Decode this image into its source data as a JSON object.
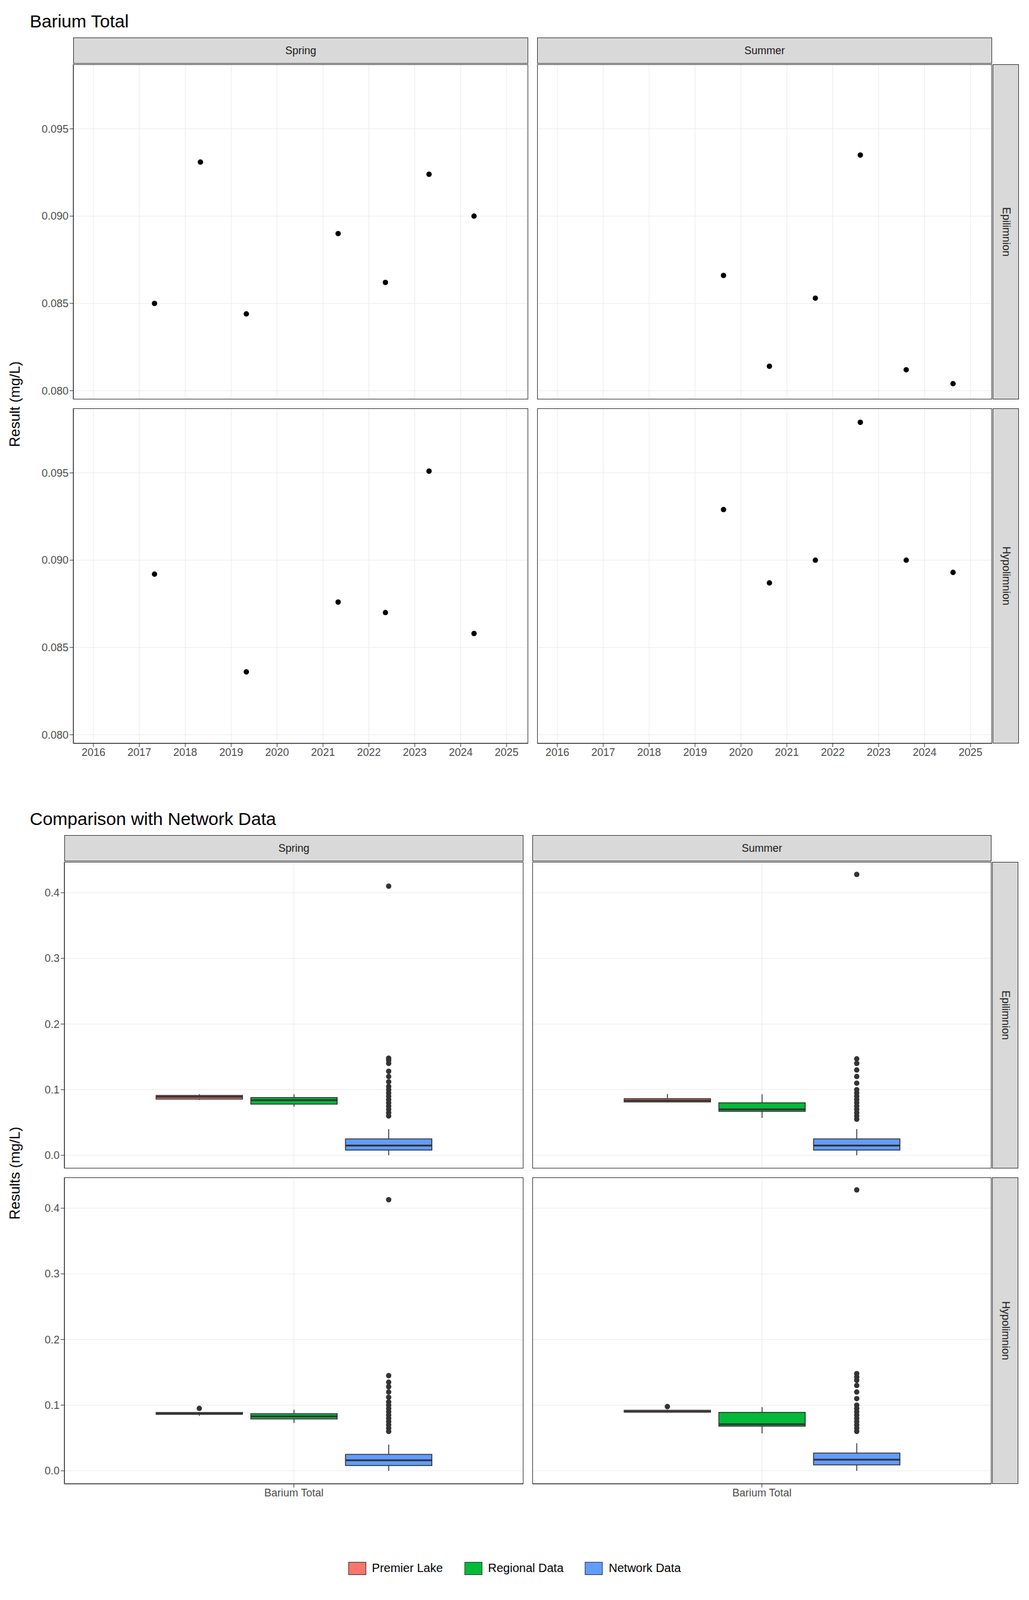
{
  "chart_data": [
    {
      "type": "scatter",
      "title": "Barium Total",
      "y_label": "Result (mg/L)",
      "color": "#000000",
      "grid": true,
      "columns": [
        "Spring",
        "Summer"
      ],
      "rows": [
        "Epilimnion",
        "Hypolimnion"
      ],
      "xlim": [
        2015.56,
        2025.47
      ],
      "xticks": [
        2016,
        2017,
        2018,
        2019,
        2020,
        2021,
        2022,
        2023,
        2024,
        2025
      ],
      "ylim": [
        0.0795,
        0.0987
      ],
      "yticks": [
        {
          "value": 0.08,
          "label": "0.080"
        },
        0.085,
        {
          "value": 0.09,
          "label": "0.090"
        },
        0.095
      ],
      "panels": [
        {
          "column": "Spring",
          "row": "Epilimnion",
          "x": [
            2017.33,
            2018.33,
            2019.33,
            2021.33,
            2022.36,
            2023.31,
            2024.29
          ],
          "values": [
            0.085,
            0.0931,
            0.0844,
            0.089,
            0.0862,
            0.0924,
            0.09
          ]
        },
        {
          "column": "Summer",
          "row": "Epilimnion",
          "x": [
            2019.62,
            2020.62,
            2021.62,
            2022.6,
            2023.6,
            2024.62
          ],
          "values": [
            0.0866,
            0.0814,
            0.0853,
            0.0935,
            0.0812,
            0.0804
          ]
        },
        {
          "column": "Spring",
          "row": "Hypolimnion",
          "x": [
            2017.33,
            2019.33,
            2021.33,
            2022.36,
            2023.31,
            2024.29
          ],
          "values": [
            0.0892,
            0.0836,
            0.0876,
            0.087,
            0.0951,
            0.0858
          ]
        },
        {
          "column": "Summer",
          "row": "Hypolimnion",
          "x": [
            2019.62,
            2020.62,
            2021.62,
            2022.6,
            2023.6,
            2024.62
          ],
          "values": [
            0.0929,
            0.0887,
            0.09,
            0.0979,
            0.09,
            0.0893
          ]
        }
      ]
    },
    {
      "type": "box",
      "title": "Comparison with Network Data",
      "y_label": "Results (mg/L)",
      "grid": true,
      "legend": "bottom",
      "columns": [
        "Spring",
        "Summer"
      ],
      "rows": [
        "Epilimnion",
        "Hypolimnion"
      ],
      "categories": [
        "Barium Total"
      ],
      "ylim": [
        -0.02,
        0.447
      ],
      "yticks": [
        {
          "value": 0,
          "label": "0.0"
        },
        0.1,
        0.2,
        0.3,
        0.4
      ],
      "series": [
        {
          "name": "Premier Lake",
          "color": "#F8766D"
        },
        {
          "name": "Regional Data",
          "color": "#00BA38"
        },
        {
          "name": "Network Data",
          "color": "#619CFF"
        }
      ],
      "panels": [
        {
          "column": "Spring",
          "row": "Epilimnion",
          "boxes": [
            {
              "name": "Premier Lake",
              "whisker_low": 0.0844,
              "q1": 0.0856,
              "median": 0.089,
              "q3": 0.0912,
              "whisker_high": 0.0931,
              "outliers": []
            },
            {
              "name": "Regional Data",
              "whisker_low": 0.074,
              "q1": 0.078,
              "median": 0.084,
              "q3": 0.088,
              "whisker_high": 0.093,
              "outliers": []
            },
            {
              "name": "Network Data",
              "whisker_low": 0.0,
              "q1": 0.008,
              "median": 0.015,
              "q3": 0.025,
              "whisker_high": 0.04,
              "outliers": [
                0.41,
                0.148,
                0.145,
                0.14,
                0.128,
                0.12,
                0.112,
                0.105,
                0.1,
                0.095,
                0.09,
                0.085,
                0.08,
                0.075,
                0.07,
                0.065,
                0.06
              ]
            }
          ]
        },
        {
          "column": "Summer",
          "row": "Epilimnion",
          "boxes": [
            {
              "name": "Premier Lake",
              "whisker_low": 0.0804,
              "q1": 0.0813,
              "median": 0.08335,
              "q3": 0.0863,
              "whisker_high": 0.0935,
              "outliers": []
            },
            {
              "name": "Regional Data",
              "whisker_low": 0.057,
              "q1": 0.067,
              "median": 0.07,
              "q3": 0.08,
              "whisker_high": 0.093,
              "outliers": []
            },
            {
              "name": "Network Data",
              "whisker_low": 0.0,
              "q1": 0.008,
              "median": 0.015,
              "q3": 0.025,
              "whisker_high": 0.04,
              "outliers": [
                0.428,
                0.147,
                0.14,
                0.13,
                0.12,
                0.11,
                0.1,
                0.095,
                0.09,
                0.085,
                0.08,
                0.075,
                0.07,
                0.065,
                0.06,
                0.055
              ]
            }
          ]
        },
        {
          "column": "Spring",
          "row": "Hypolimnion",
          "boxes": [
            {
              "name": "Premier Lake",
              "whisker_low": 0.0836,
              "q1": 0.0861,
              "median": 0.0873,
              "q3": 0.0888,
              "whisker_high": 0.0892,
              "outliers": [
                0.0951
              ]
            },
            {
              "name": "Regional Data",
              "whisker_low": 0.073,
              "q1": 0.079,
              "median": 0.083,
              "q3": 0.087,
              "whisker_high": 0.093,
              "outliers": []
            },
            {
              "name": "Network Data",
              "whisker_low": 0.0,
              "q1": 0.008,
              "median": 0.016,
              "q3": 0.025,
              "whisker_high": 0.04,
              "outliers": [
                0.413,
                0.145,
                0.135,
                0.128,
                0.12,
                0.112,
                0.105,
                0.1,
                0.095,
                0.09,
                0.085,
                0.08,
                0.075,
                0.07,
                0.065,
                0.06
              ]
            }
          ]
        },
        {
          "column": "Summer",
          "row": "Hypolimnion",
          "boxes": [
            {
              "name": "Premier Lake",
              "whisker_low": 0.0887,
              "q1": 0.08948,
              "median": 0.09,
              "q3": 0.09218,
              "whisker_high": 0.0929,
              "outliers": [
                0.0979
              ]
            },
            {
              "name": "Regional Data",
              "whisker_low": 0.057,
              "q1": 0.068,
              "median": 0.071,
              "q3": 0.089,
              "whisker_high": 0.097,
              "outliers": []
            },
            {
              "name": "Network Data",
              "whisker_low": 0.0,
              "q1": 0.009,
              "median": 0.017,
              "q3": 0.027,
              "whisker_high": 0.042,
              "outliers": [
                0.428,
                0.148,
                0.143,
                0.138,
                0.13,
                0.12,
                0.11,
                0.1,
                0.095,
                0.09,
                0.085,
                0.08,
                0.075,
                0.07,
                0.065,
                0.06
              ]
            }
          ]
        }
      ]
    }
  ]
}
